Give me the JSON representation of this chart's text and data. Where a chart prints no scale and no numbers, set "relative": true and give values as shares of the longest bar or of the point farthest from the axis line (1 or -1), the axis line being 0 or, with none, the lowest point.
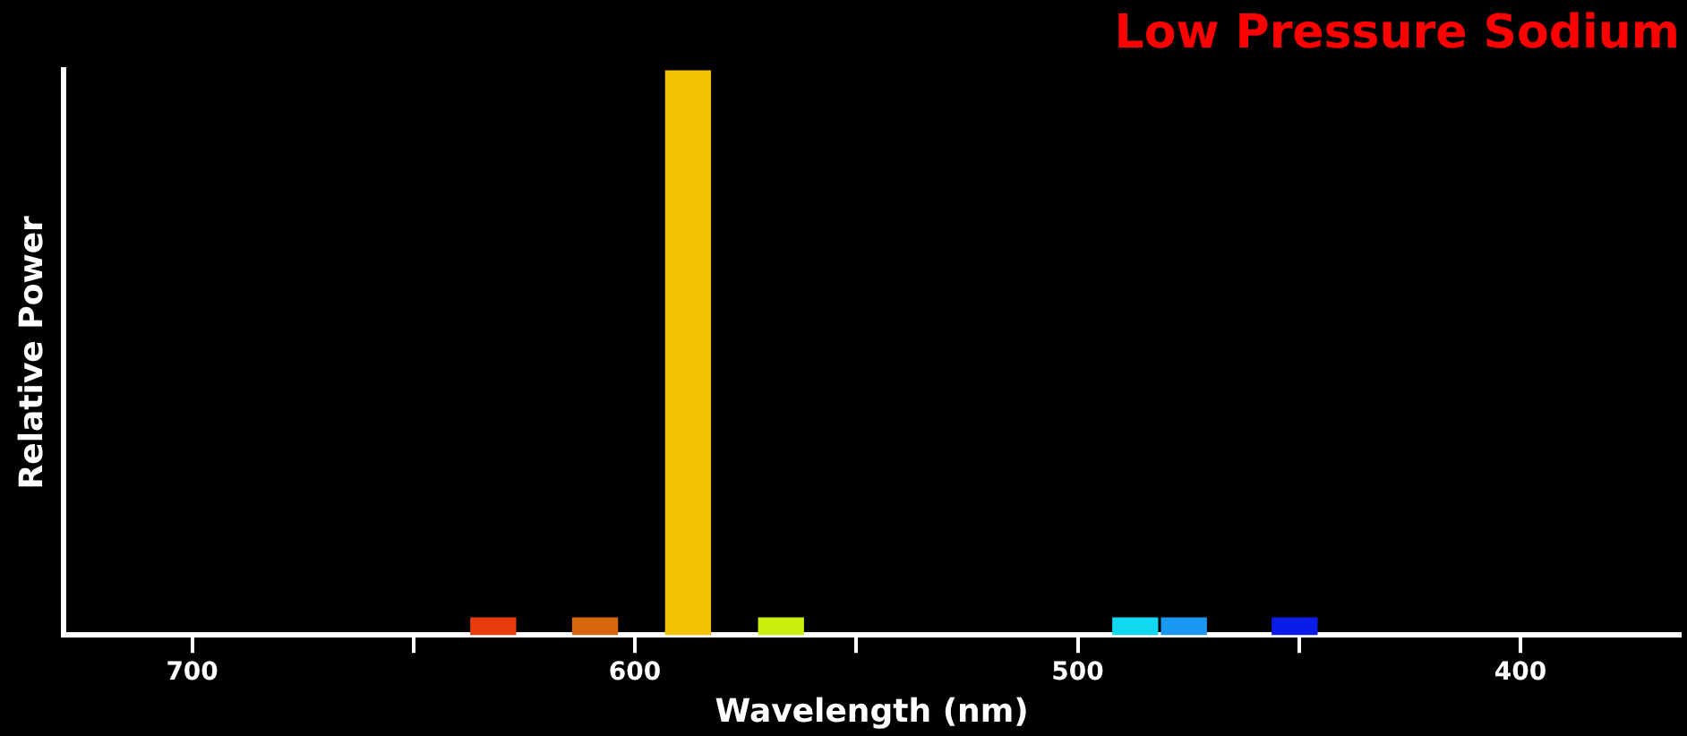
{
  "chart_data": {
    "type": "bar",
    "title": "Low Pressure Sodium",
    "xlabel": "Wavelength (nm)",
    "ylabel": "Relative Power",
    "relative": true,
    "x": [
      632,
      609,
      588,
      567,
      487,
      476,
      451
    ],
    "values": [
      0.03,
      0.03,
      1,
      0.03,
      0.03,
      0.03,
      0.03
    ],
    "colors": [
      "#e83c0c",
      "#d8660e",
      "#f2c200",
      "#c8f00c",
      "#10d8f0",
      "#1898f0",
      "#0c1ce8"
    ],
    "xlim": [
      729,
      364
    ],
    "xticks": [
      700,
      {
        "value": 650,
        "label": null
      },
      600,
      {
        "value": 550,
        "label": null
      },
      500,
      {
        "value": 450,
        "label": null
      },
      400
    ],
    "grid": false,
    "legend": false
  }
}
